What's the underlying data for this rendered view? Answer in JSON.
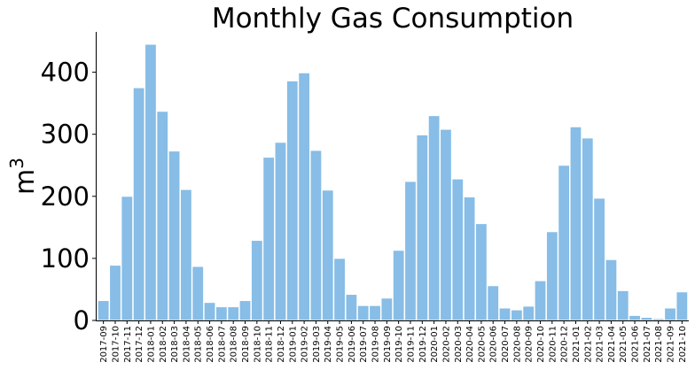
{
  "chart_data": {
    "type": "bar",
    "title": "Monthly Gas Consumption",
    "xlabel": "",
    "ylabel_base": "m",
    "ylabel_sup": "3",
    "ylim": [
      0,
      465
    ],
    "yticks": [
      0,
      100,
      200,
      300,
      400
    ],
    "grid": false,
    "colors": {
      "bar": "#87bde6",
      "axis": "#000000"
    },
    "categories": [
      "2017-09",
      "2017-10",
      "2017-11",
      "2017-12",
      "2018-01",
      "2018-02",
      "2018-03",
      "2018-04",
      "2018-05",
      "2018-06",
      "2018-07",
      "2018-08",
      "2018-09",
      "2018-10",
      "2018-11",
      "2018-12",
      "2019-01",
      "2019-02",
      "2019-03",
      "2019-04",
      "2019-05",
      "2019-06",
      "2019-07",
      "2019-08",
      "2019-09",
      "2019-10",
      "2019-11",
      "2019-12",
      "2020-01",
      "2020-02",
      "2020-03",
      "2020-04",
      "2020-05",
      "2020-06",
      "2020-07",
      "2020-08",
      "2020-09",
      "2020-10",
      "2020-11",
      "2020-12",
      "2021-01",
      "2021-02",
      "2021-03",
      "2021-04",
      "2021-05",
      "2021-06",
      "2021-07",
      "2021-08",
      "2021-09",
      "2021-10"
    ],
    "values": [
      32,
      89,
      200,
      375,
      445,
      337,
      273,
      211,
      87,
      29,
      22,
      22,
      32,
      129,
      263,
      287,
      386,
      399,
      274,
      210,
      100,
      42,
      24,
      24,
      36,
      113,
      224,
      299,
      330,
      308,
      228,
      199,
      156,
      56,
      20,
      17,
      23,
      64,
      143,
      250,
      312,
      294,
      197,
      98,
      48,
      8,
      5,
      3,
      20,
      46
    ]
  }
}
